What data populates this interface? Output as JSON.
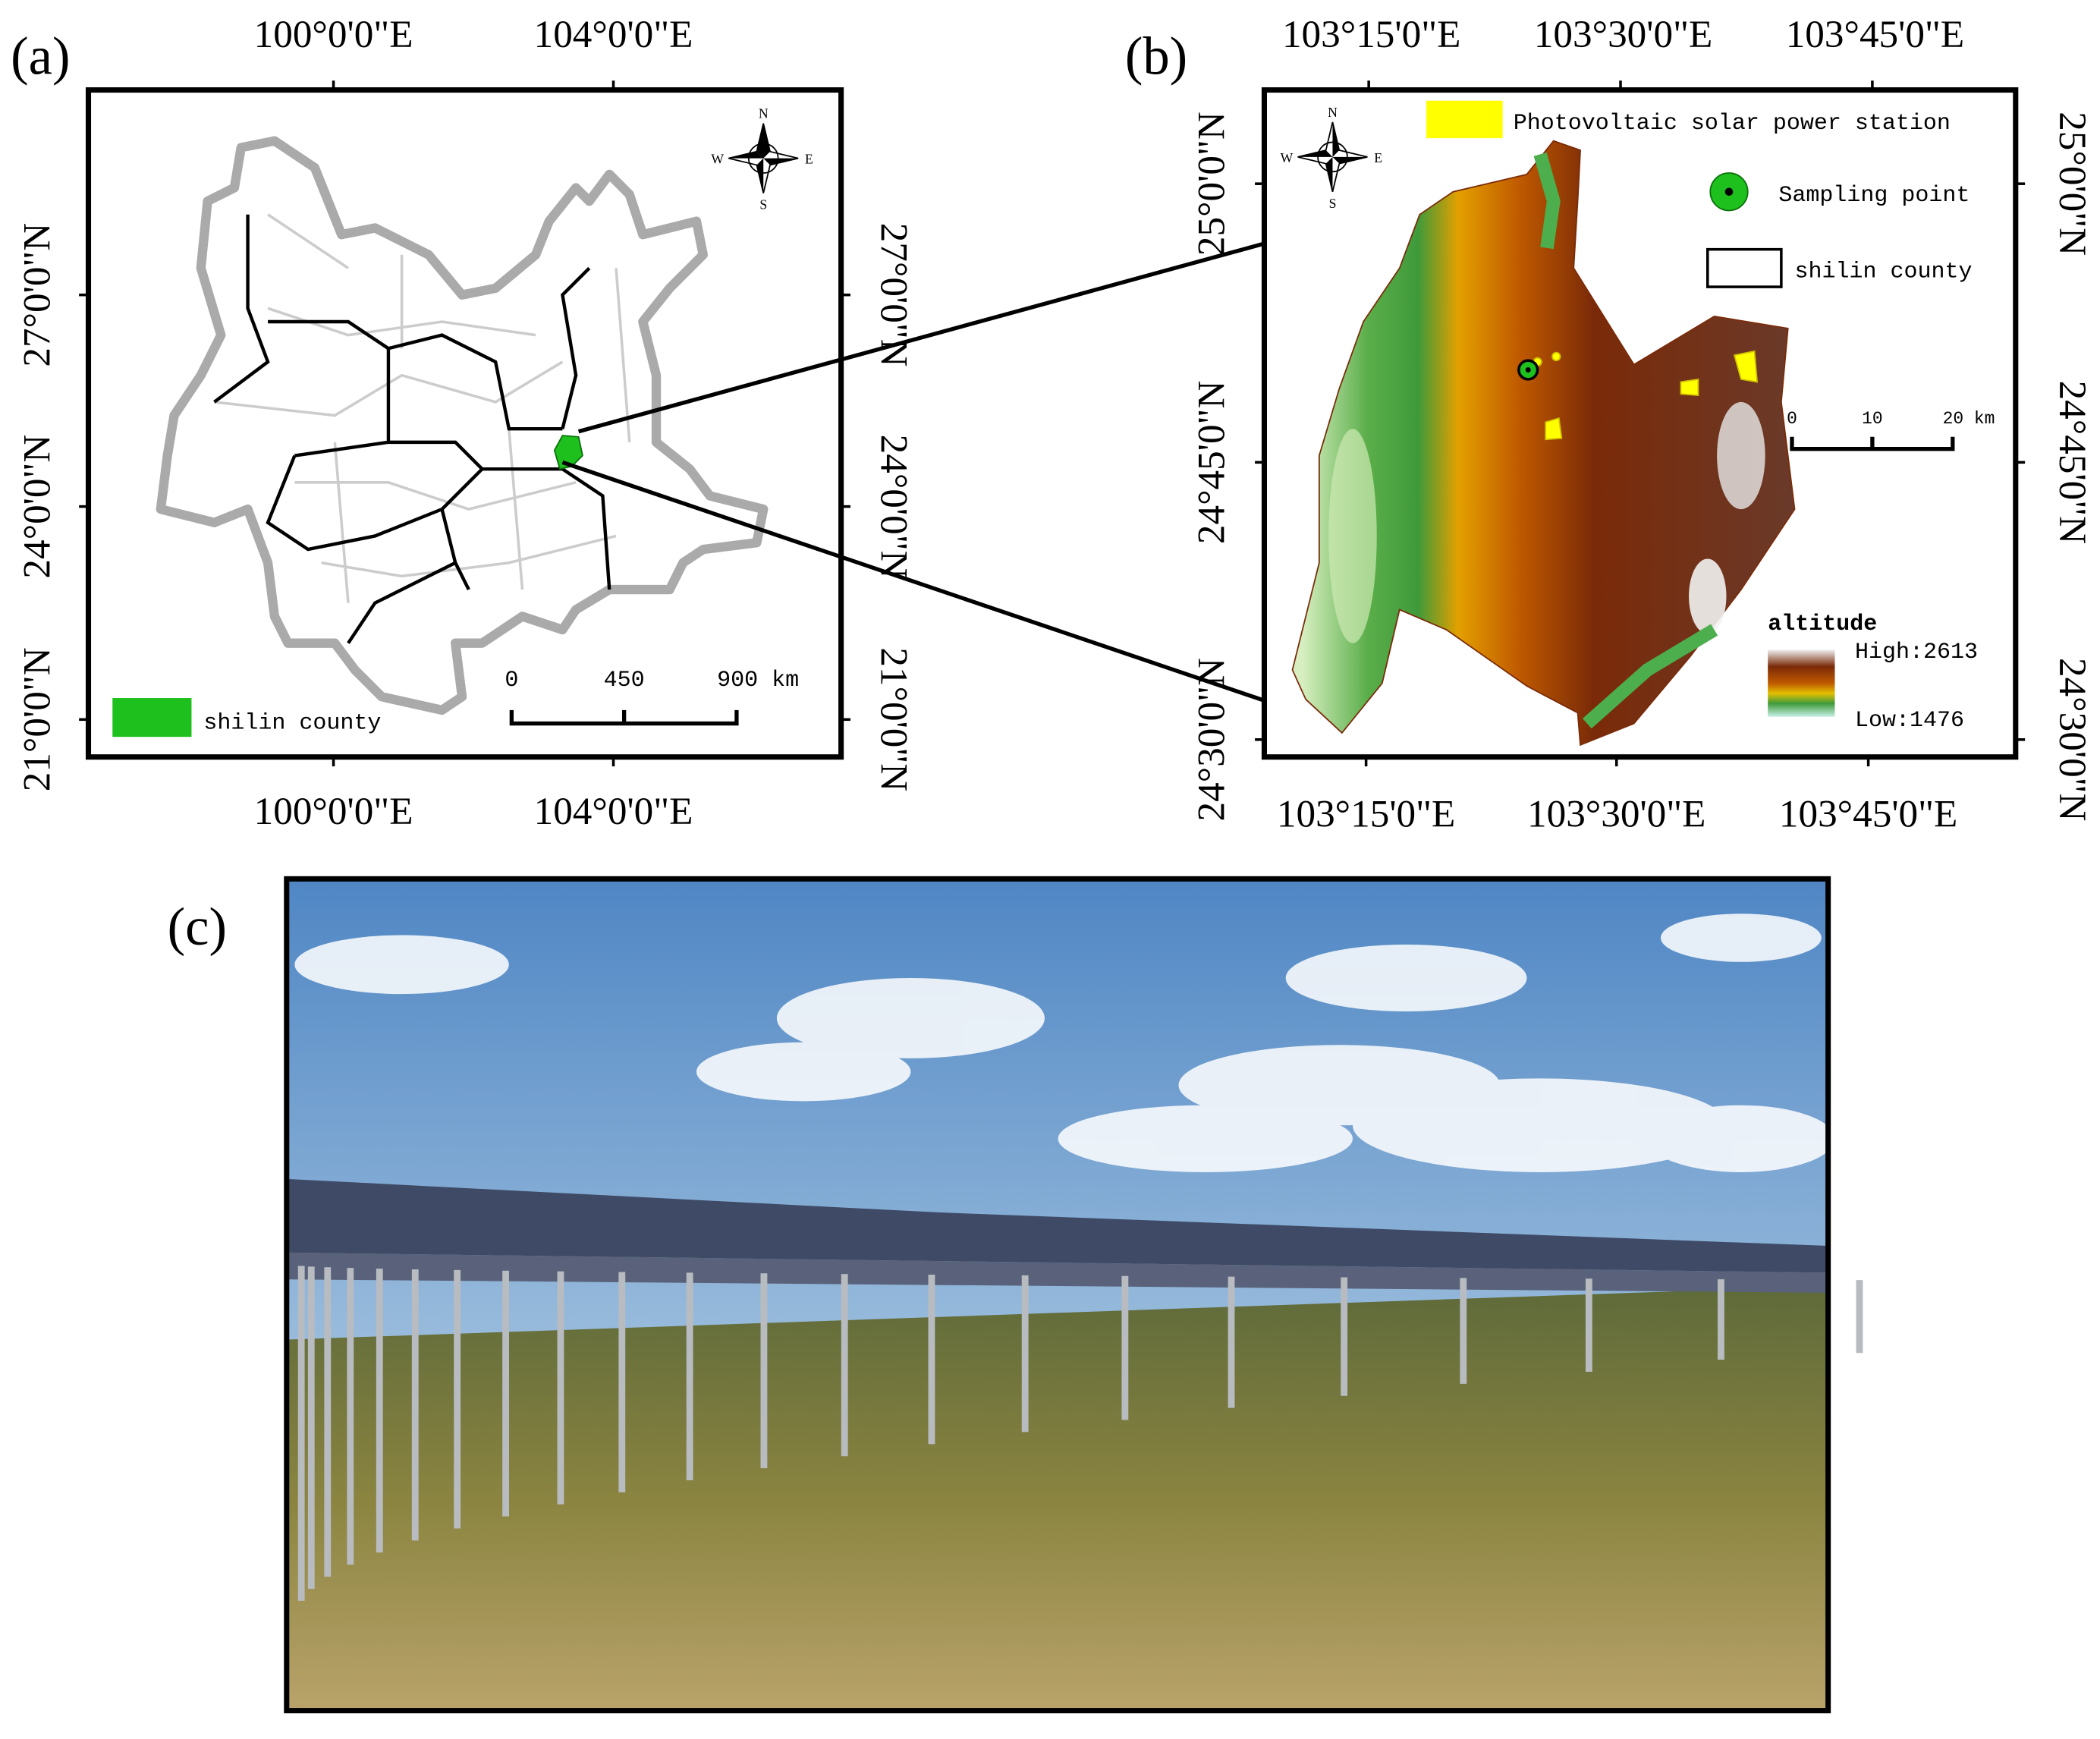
{
  "panel_a": {
    "label": "(a)",
    "lon_labels": [
      "100°0'0\"E",
      "104°0'0\"E"
    ],
    "lat_labels": [
      "27°0'0\"N",
      "24°0'0\"N",
      "21°0'0\"N"
    ],
    "compass": {
      "n": "N",
      "s": "S",
      "e": "E",
      "w": "W"
    },
    "legend": "shilin county",
    "scale": [
      "0",
      "450",
      "900 km"
    ]
  },
  "panel_b": {
    "label": "(b)",
    "lon_labels": [
      "103°15'0\"E",
      "103°30'0\"E",
      "103°45'0\"E"
    ],
    "lat_labels": [
      "25°0'0\"N",
      "24°45'0\"N",
      "24°30'0\"N"
    ],
    "compass": {
      "n": "N",
      "s": "S",
      "e": "E",
      "w": "W"
    },
    "legend": [
      "Photovoltaic solar power station",
      "Sampling point",
      "shilin county"
    ],
    "scale": [
      "0",
      "10",
      "20 km"
    ],
    "altitude": {
      "title": "altitude",
      "high": "High:2613",
      "low": "Low:1476"
    }
  },
  "panel_c": {
    "label": "(c)"
  }
}
